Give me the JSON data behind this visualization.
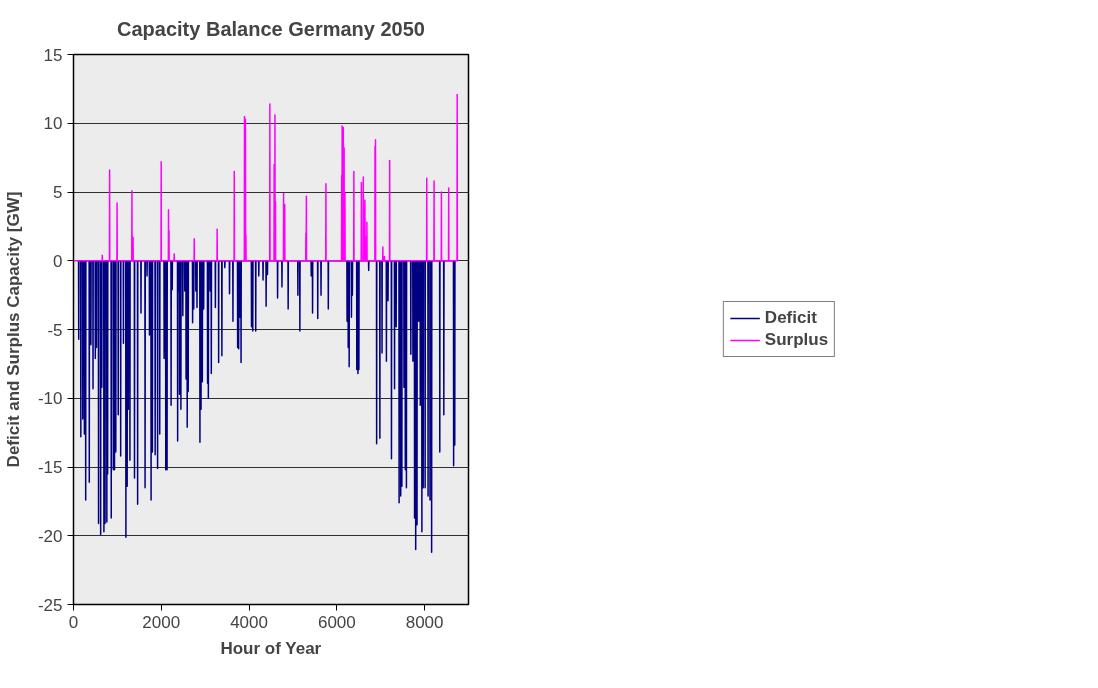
{
  "chart_data": {
    "type": "line",
    "title": "Capacity Balance Germany 2050",
    "xlabel": "Hour of Year",
    "ylabel": "Deficit and Surplus Capacity [GW]",
    "xlim": [
      0,
      9000
    ],
    "xticks": [
      0,
      2000,
      4000,
      6000,
      8000
    ],
    "ylim": [
      -25,
      15
    ],
    "yticks": [
      -25,
      -20,
      -15,
      -10,
      -5,
      0,
      5,
      10,
      15
    ],
    "grid": "y",
    "legend": "right",
    "line_style": "solid",
    "marker": "none",
    "series": [
      {
        "name": "Deficit",
        "color": "#000080",
        "x": [
          115,
          119,
          123,
          163,
          167,
          171,
          207,
          211,
          215,
          244,
          248,
          252,
          274,
          278,
          282,
          356,
          360,
          364,
          393,
          397,
          401,
          441,
          445,
          449,
          493,
          497,
          501,
          522,
          526,
          530,
          567,
          571,
          575,
          615,
          619,
          623,
          641,
          645,
          649,
          689,
          693,
          697,
          715,
          719,
          723,
          756,
          760,
          764,
          774,
          778,
          782,
          856,
          860,
          864,
          904,
          908,
          912,
          930,
          934,
          938,
          960,
          964,
          968,
          1015,
          1019,
          1023,
          1071,
          1075,
          1079,
          1134,
          1138,
          1142,
          1190,
          1194,
          1198,
          1219,
          1223,
          1227,
          1245,
          1249,
          1253,
          1282,
          1286,
          1290,
          1386,
          1390,
          1394,
          1457,
          1461,
          1465,
          1534,
          1538,
          1542,
          1627,
          1631,
          1635,
          1672,
          1676,
          1680,
          1727,
          1731,
          1735,
          1764,
          1768,
          1772,
          1794,
          1798,
          1802,
          1857,
          1861,
          1865,
          1912,
          1916,
          1920,
          1961,
          1965,
          1969,
          2061,
          2065,
          2069,
          2098,
          2102,
          2106,
          2128,
          2132,
          2136,
          2220,
          2224,
          2228,
          2246,
          2250,
          2254,
          2369,
          2373,
          2377,
          2394,
          2398,
          2402,
          2413,
          2417,
          2421,
          2443,
          2447,
          2451,
          2487,
          2491,
          2495,
          2532,
          2536,
          2540,
          2561,
          2565,
          2569,
          2587,
          2591,
          2595,
          2610,
          2614,
          2618,
          2710,
          2714,
          2718,
          2736,
          2740,
          2744,
          2784,
          2788,
          2792,
          2810,
          2814,
          2818,
          2877,
          2881,
          2885,
          2902,
          2906,
          2910,
          2932,
          2936,
          2940,
          2962,
          2966,
          2970,
          3051,
          3055,
          3059,
          3069,
          3073,
          3077,
          3110,
          3114,
          3118,
          3136,
          3140,
          3144,
          3229,
          3233,
          3237,
          3303,
          3307,
          3311,
          3377,
          3381,
          3385,
          3444,
          3448,
          3452,
          3551,
          3555,
          3559,
          3629,
          3633,
          3637,
          3736,
          3740,
          3744,
          3759,
          3763,
          3767,
          3785,
          3789,
          3793,
          3814,
          3818,
          3822,
          4052,
          4056,
          4060,
          4081,
          4085,
          4089,
          4148,
          4152,
          4156,
          4218,
          4222,
          4226,
          4315,
          4319,
          4323,
          4385,
          4389,
          4393,
          4415,
          4419,
          4423,
          4646,
          4650,
          4654,
          4746,
          4750,
          4754,
          4887,
          4891,
          4895,
          5109,
          5113,
          5117,
          5154,
          5158,
          5162,
          5413,
          5417,
          5421,
          5443,
          5447,
          5451,
          5561,
          5565,
          5569,
          5636,
          5640,
          5644,
          5802,
          5806,
          5810,
          6229,
          6233,
          6237,
          6255,
          6259,
          6263,
          6277,
          6281,
          6285,
          6329,
          6333,
          6337,
          6351,
          6355,
          6359,
          6451,
          6455,
          6459,
          6477,
          6481,
          6485,
          6499,
          6503,
          6507,
          6722,
          6726,
          6730,
          6903,
          6907,
          6911,
          6977,
          6981,
          6985,
          7026,
          7030,
          7034,
          7126,
          7130,
          7134,
          7163,
          7167,
          7171,
          7241,
          7245,
          7249,
          7311,
          7315,
          7319,
          7348,
          7352,
          7356,
          7415,
          7419,
          7423,
          7452,
          7456,
          7460,
          7478,
          7482,
          7486,
          7526,
          7530,
          7534,
          7556,
          7560,
          7564,
          7582,
          7586,
          7590,
          7682,
          7686,
          7690,
          7730,
          7734,
          7738,
          7767,
          7771,
          7775,
          7793,
          7797,
          7801,
          7823,
          7827,
          7831,
          7860,
          7864,
          7868,
          7897,
          7901,
          7905,
          7934,
          7938,
          7942,
          7964,
          7968,
          7972,
          8008,
          8012,
          8016,
          8075,
          8079,
          8083,
          8119,
          8123,
          8127,
          8156,
          8160,
          8164,
          8342,
          8346,
          8350,
          8434,
          8438,
          8442,
          8657,
          8661,
          8665,
          8683,
          8687,
          8691
        ],
        "values": [
          0,
          -5.7,
          0,
          0,
          -12.8,
          0,
          0,
          -11.5,
          0,
          0,
          -12.6,
          0,
          0,
          -17.4,
          0,
          0,
          -16.1,
          0,
          0,
          -6.1,
          0,
          0,
          -9.3,
          0,
          0,
          -7.1,
          0,
          0,
          -6.3,
          0,
          0,
          -19.1,
          0,
          0,
          -19.9,
          0,
          0,
          -9.2,
          0,
          0,
          -19.7,
          0,
          0,
          -19.1,
          0,
          0,
          -19.0,
          0,
          0,
          -15.5,
          0,
          0,
          -18.7,
          0,
          0,
          -15.2,
          0,
          0,
          -15.2,
          0,
          0,
          -13.9,
          0,
          0,
          -11.2,
          0,
          0,
          -14.2,
          0,
          0,
          -6.0,
          0,
          0,
          -20.1,
          0,
          0,
          -16.4,
          0,
          0,
          -10.8,
          0,
          0,
          -14.5,
          0,
          0,
          -15.8,
          0,
          0,
          -17.7,
          0,
          0,
          -3.8,
          0,
          0,
          -16.5,
          0,
          0,
          -1.1,
          0,
          0,
          -5.4,
          0,
          0,
          -17.4,
          0,
          0,
          -13.9,
          0,
          0,
          -14.1,
          0,
          0,
          -15.1,
          0,
          0,
          -12.6,
          0,
          0,
          -7.1,
          0,
          0,
          -15.2,
          0,
          0,
          -15.2,
          0,
          0,
          -10.5,
          0,
          0,
          -2.1,
          0,
          0,
          -13.1,
          0,
          0,
          -2.2,
          0,
          0,
          -9.7,
          0,
          0,
          -10.8,
          0,
          0,
          -4.0,
          0,
          0,
          -2.2,
          0,
          0,
          -8.6,
          0,
          0,
          -12.1,
          0,
          0,
          -9.5,
          0,
          0,
          -4.5,
          0,
          0,
          -3.5,
          0,
          0,
          -2.2,
          0,
          0,
          -3.4,
          0,
          0,
          -13.2,
          0,
          0,
          -10.8,
          0,
          0,
          -8.8,
          0,
          0,
          -3.5,
          0,
          0,
          -8.9,
          0,
          0,
          -10.0,
          0,
          0,
          -2.2,
          0,
          0,
          -8.2,
          0,
          0,
          -3.4,
          0,
          0,
          -7.4,
          0,
          0,
          -6.9,
          0,
          0,
          -0.5,
          0,
          0,
          -2.4,
          0,
          0,
          -4.4,
          0,
          0,
          -6.3,
          0,
          0,
          -6.4,
          0,
          0,
          -4.1,
          0,
          0,
          -7.4,
          0,
          0,
          -4.8,
          0,
          0,
          -5.1,
          0,
          0,
          -5.1,
          0,
          0,
          -1.1,
          0,
          0,
          -1.4,
          0,
          0,
          -3.3,
          0,
          0,
          -1.0,
          0,
          0,
          -2.7,
          0,
          0,
          -1.9,
          0,
          0,
          -3.5,
          0,
          0,
          -2.5,
          0,
          0,
          -5.1,
          0,
          0,
          -1.1,
          0,
          0,
          -3.8,
          0,
          0,
          -4.2,
          0,
          0,
          -2.5,
          0,
          0,
          -3.5,
          0,
          0,
          -4.4,
          0,
          0,
          -6.3,
          0,
          0,
          -7.7,
          0,
          0,
          -4.1,
          0,
          0,
          -2.5,
          0,
          0,
          -7.9,
          0,
          0,
          -8.2,
          0,
          0,
          -7.9,
          0,
          0,
          -0.7,
          0,
          0,
          -13.3,
          0,
          0,
          -12.9,
          0,
          0,
          -6.7,
          0,
          0,
          -7.3,
          0,
          0,
          -2.9,
          0,
          0,
          -14.4,
          0,
          0,
          -9.3,
          0,
          0,
          -4.8,
          0,
          0,
          -17.6,
          0,
          0,
          -17.1,
          0,
          0,
          -16.4,
          0,
          0,
          -9.2,
          0,
          0,
          -15.2,
          0,
          0,
          -16.5,
          0,
          0,
          -6.8,
          0,
          0,
          -7.3,
          0,
          0,
          -18.7,
          0,
          0,
          -21.0,
          0,
          0,
          -19.2,
          0,
          0,
          -4.4,
          0,
          0,
          -10.5,
          0,
          0,
          -19.7,
          0,
          0,
          -16.5,
          0,
          0,
          -16.5,
          0,
          0,
          -17.1,
          0,
          0,
          -17.4,
          0,
          0,
          -21.2,
          0,
          0,
          -13.9,
          0,
          0,
          -11.2,
          0,
          0,
          -14.9,
          0,
          0,
          -13.4,
          0
        ]
      },
      {
        "name": "Surplus",
        "color": "#ff00ff",
        "x": [
          0,
          652,
          656,
          660,
          819,
          823,
          827,
          989,
          993,
          997,
          1327,
          1331,
          1335,
          1353,
          1357,
          1361,
          1994,
          1998,
          2002,
          2161,
          2165,
          2169,
          2172,
          2176,
          2180,
          2291,
          2295,
          2299,
          2747,
          2751,
          2755,
          3269,
          3273,
          3277,
          3659,
          3663,
          3667,
          3892,
          3896,
          3900,
          3914,
          3918,
          3922,
          3925,
          3929,
          3933,
          4470,
          4474,
          4478,
          4568,
          4572,
          4576,
          4586,
          4590,
          4594,
          4598,
          4602,
          4606,
          4783,
          4787,
          4791,
          4809,
          4813,
          4817,
          5291,
          5295,
          5299,
          5302,
          5306,
          5310,
          5747,
          5751,
          5755,
          6106,
          6110,
          6114,
          6117,
          6121,
          6125,
          6143,
          6147,
          6151,
          6162,
          6166,
          6170,
          6181,
          6185,
          6189,
          6384,
          6388,
          6392,
          6555,
          6559,
          6563,
          6599,
          6603,
          6607,
          6618,
          6622,
          6626,
          6636,
          6640,
          6644,
          6662,
          6666,
          6670,
          6681,
          6685,
          6689,
          6866,
          6870,
          6874,
          6877,
          6881,
          6885,
          7044,
          7048,
          7052,
          7081,
          7085,
          7089,
          7200,
          7204,
          7208,
          8045,
          8049,
          8053,
          8212,
          8216,
          8220,
          8379,
          8383,
          8387,
          8545,
          8549,
          8553,
          8738,
          8742,
          8746,
          8760
        ],
        "values": [
          0,
          0,
          0.4,
          0,
          0,
          6.6,
          0,
          0,
          4.2,
          0,
          0,
          5.1,
          0,
          0,
          1.7,
          0,
          0,
          7.2,
          0,
          0,
          3.7,
          0,
          0,
          2.2,
          0,
          0,
          0.5,
          0,
          0,
          1.6,
          0,
          0,
          2.3,
          0,
          0,
          6.5,
          0,
          0,
          10.5,
          0,
          0,
          10.3,
          0,
          0,
          1.9,
          0,
          0,
          11.4,
          0,
          0,
          7.0,
          0,
          0,
          10.6,
          0,
          0,
          4.3,
          0,
          0,
          4.9,
          0,
          0,
          4.1,
          0,
          0,
          2.0,
          0,
          0,
          4.7,
          0,
          0,
          5.6,
          0,
          0,
          6.2,
          0,
          0,
          9.8,
          0,
          0,
          9.7,
          0,
          0,
          8.2,
          0,
          0,
          4.9,
          0,
          0,
          6.5,
          0,
          0,
          5.7,
          0,
          0,
          6.1,
          0,
          0,
          3.8,
          0,
          0,
          4.4,
          0,
          0,
          1.7,
          0,
          0,
          2.8,
          0,
          0,
          8.3,
          0,
          0,
          8.8,
          0,
          0,
          1.0,
          0,
          0,
          0.3,
          0,
          0,
          7.3,
          0,
          0,
          6.0,
          0,
          0,
          5.8,
          0,
          0,
          5.0,
          0,
          0,
          5.3,
          0,
          0,
          12.1,
          0,
          0
        ]
      }
    ]
  }
}
